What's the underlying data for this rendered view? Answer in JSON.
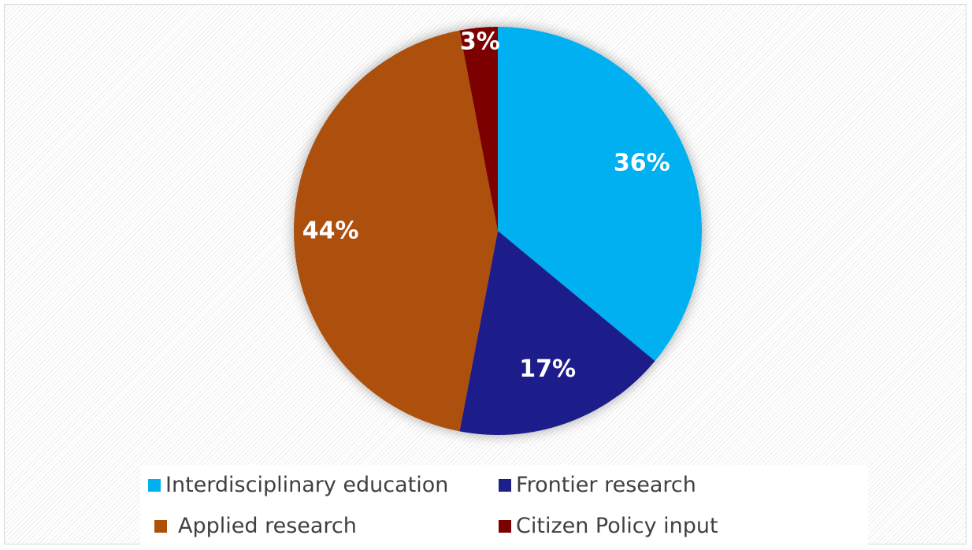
{
  "chart_data": {
    "type": "pie",
    "title": "",
    "slices": [
      {
        "label": "Interdisciplinary education",
        "value": 36,
        "display": "36%",
        "color": "#00B0F0"
      },
      {
        "label": "Frontier research",
        "value": 17,
        "display": "17%",
        "color": "#1F1F8A"
      },
      {
        "label": "Applied research",
        "value": 44,
        "display": "44%",
        "color": "#AD5008"
      },
      {
        "label": "Citizen Policy input",
        "value": 3,
        "display": "3%",
        "color": "#7B0000"
      }
    ],
    "legend_position": "bottom",
    "data_labels": "inside"
  },
  "legend": {
    "items": [
      {
        "label": "Interdisciplinary education",
        "color": "#00B0F0"
      },
      {
        "label": "Frontier research",
        "color": "#1F1F8A"
      },
      {
        "label": "Applied research",
        "color": "#AD5008"
      },
      {
        "label": "Citizen Policy input",
        "color": "#7B0000"
      }
    ]
  }
}
